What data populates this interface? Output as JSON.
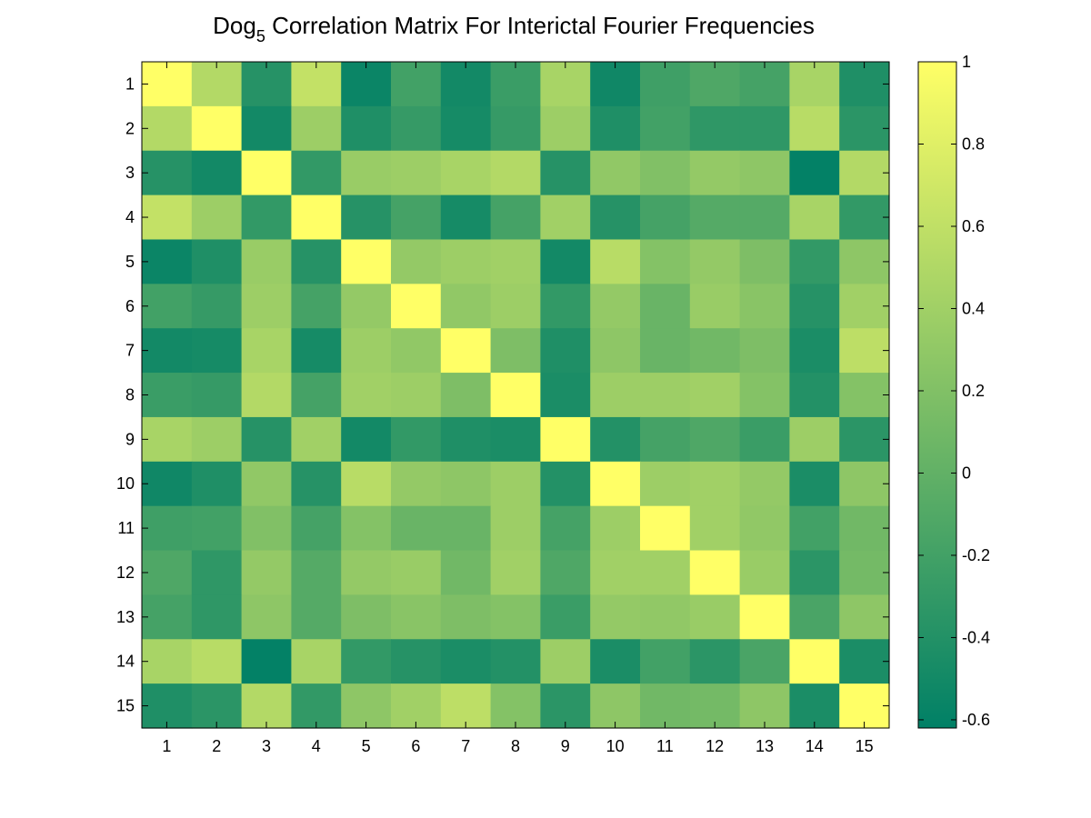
{
  "chart_data": {
    "type": "heatmap",
    "title": {
      "base": "Dog",
      "subscript": "5",
      "rest": " Correlation Matrix For Interictal Fourier Frequencies"
    },
    "xlabel": "",
    "ylabel": "",
    "x_categories": [
      "1",
      "2",
      "3",
      "4",
      "5",
      "6",
      "7",
      "8",
      "9",
      "10",
      "11",
      "12",
      "13",
      "14",
      "15"
    ],
    "y_categories": [
      "1",
      "2",
      "3",
      "4",
      "5",
      "6",
      "7",
      "8",
      "9",
      "10",
      "11",
      "12",
      "13",
      "14",
      "15"
    ],
    "colormap": "summer",
    "clim": [
      -0.62,
      1.0
    ],
    "colorbar": {
      "ticks": [
        1,
        0.8,
        0.6,
        0.4,
        0.2,
        0,
        -0.2,
        -0.4,
        -0.6
      ],
      "tick_labels": [
        "1",
        "0.8",
        "0.6",
        "0.4",
        "0.2",
        "0",
        "-0.2",
        "-0.4",
        "-0.6"
      ],
      "placement": "right"
    },
    "grid": false,
    "values": [
      [
        1.0,
        0.52,
        -0.38,
        0.62,
        -0.55,
        -0.2,
        -0.5,
        -0.25,
        0.45,
        -0.52,
        -0.22,
        -0.12,
        -0.18,
        0.45,
        -0.42
      ],
      [
        0.52,
        1.0,
        -0.5,
        0.38,
        -0.42,
        -0.28,
        -0.48,
        -0.28,
        0.38,
        -0.42,
        -0.2,
        -0.32,
        -0.32,
        0.55,
        -0.35
      ],
      [
        -0.38,
        -0.5,
        1.0,
        -0.3,
        0.35,
        0.38,
        0.45,
        0.52,
        -0.38,
        0.3,
        0.2,
        0.32,
        0.28,
        -0.6,
        0.52
      ],
      [
        0.62,
        0.38,
        -0.3,
        1.0,
        -0.38,
        -0.18,
        -0.48,
        -0.18,
        0.4,
        -0.38,
        -0.18,
        -0.08,
        -0.08,
        0.45,
        -0.3
      ],
      [
        -0.55,
        -0.42,
        0.35,
        -0.38,
        1.0,
        0.32,
        0.38,
        0.4,
        -0.5,
        0.55,
        0.22,
        0.32,
        0.18,
        -0.3,
        0.28
      ],
      [
        -0.2,
        -0.28,
        0.38,
        -0.18,
        0.32,
        1.0,
        0.3,
        0.38,
        -0.3,
        0.32,
        0.05,
        0.35,
        0.25,
        -0.38,
        0.4
      ],
      [
        -0.5,
        -0.48,
        0.45,
        -0.48,
        0.38,
        0.3,
        1.0,
        0.18,
        -0.42,
        0.28,
        0.05,
        0.1,
        0.18,
        -0.45,
        0.58
      ],
      [
        -0.25,
        -0.28,
        0.52,
        -0.18,
        0.4,
        0.38,
        0.18,
        1.0,
        -0.45,
        0.38,
        0.38,
        0.4,
        0.22,
        -0.4,
        0.22
      ],
      [
        0.45,
        0.38,
        -0.38,
        0.4,
        -0.5,
        -0.3,
        -0.42,
        -0.45,
        1.0,
        -0.4,
        -0.18,
        -0.12,
        -0.25,
        0.38,
        -0.35
      ],
      [
        -0.52,
        -0.42,
        0.3,
        -0.38,
        0.55,
        0.32,
        0.28,
        0.38,
        -0.4,
        1.0,
        0.38,
        0.4,
        0.32,
        -0.45,
        0.28
      ],
      [
        -0.22,
        -0.2,
        0.2,
        -0.18,
        0.22,
        0.05,
        0.05,
        0.38,
        -0.18,
        0.38,
        1.0,
        0.4,
        0.3,
        -0.2,
        0.1
      ],
      [
        -0.12,
        -0.32,
        0.32,
        -0.08,
        0.32,
        0.35,
        0.1,
        0.4,
        -0.12,
        0.4,
        0.4,
        1.0,
        0.35,
        -0.35,
        0.12
      ],
      [
        -0.18,
        -0.32,
        0.28,
        -0.08,
        0.18,
        0.25,
        0.18,
        0.22,
        -0.25,
        0.32,
        0.3,
        0.35,
        1.0,
        -0.15,
        0.28
      ],
      [
        0.45,
        0.55,
        -0.6,
        0.45,
        -0.3,
        -0.38,
        -0.45,
        -0.4,
        0.38,
        -0.45,
        -0.2,
        -0.35,
        -0.15,
        1.0,
        -0.45
      ],
      [
        -0.42,
        -0.35,
        0.52,
        -0.3,
        0.28,
        0.4,
        0.58,
        0.22,
        -0.35,
        0.28,
        0.1,
        0.12,
        0.28,
        -0.45,
        1.0
      ]
    ]
  }
}
